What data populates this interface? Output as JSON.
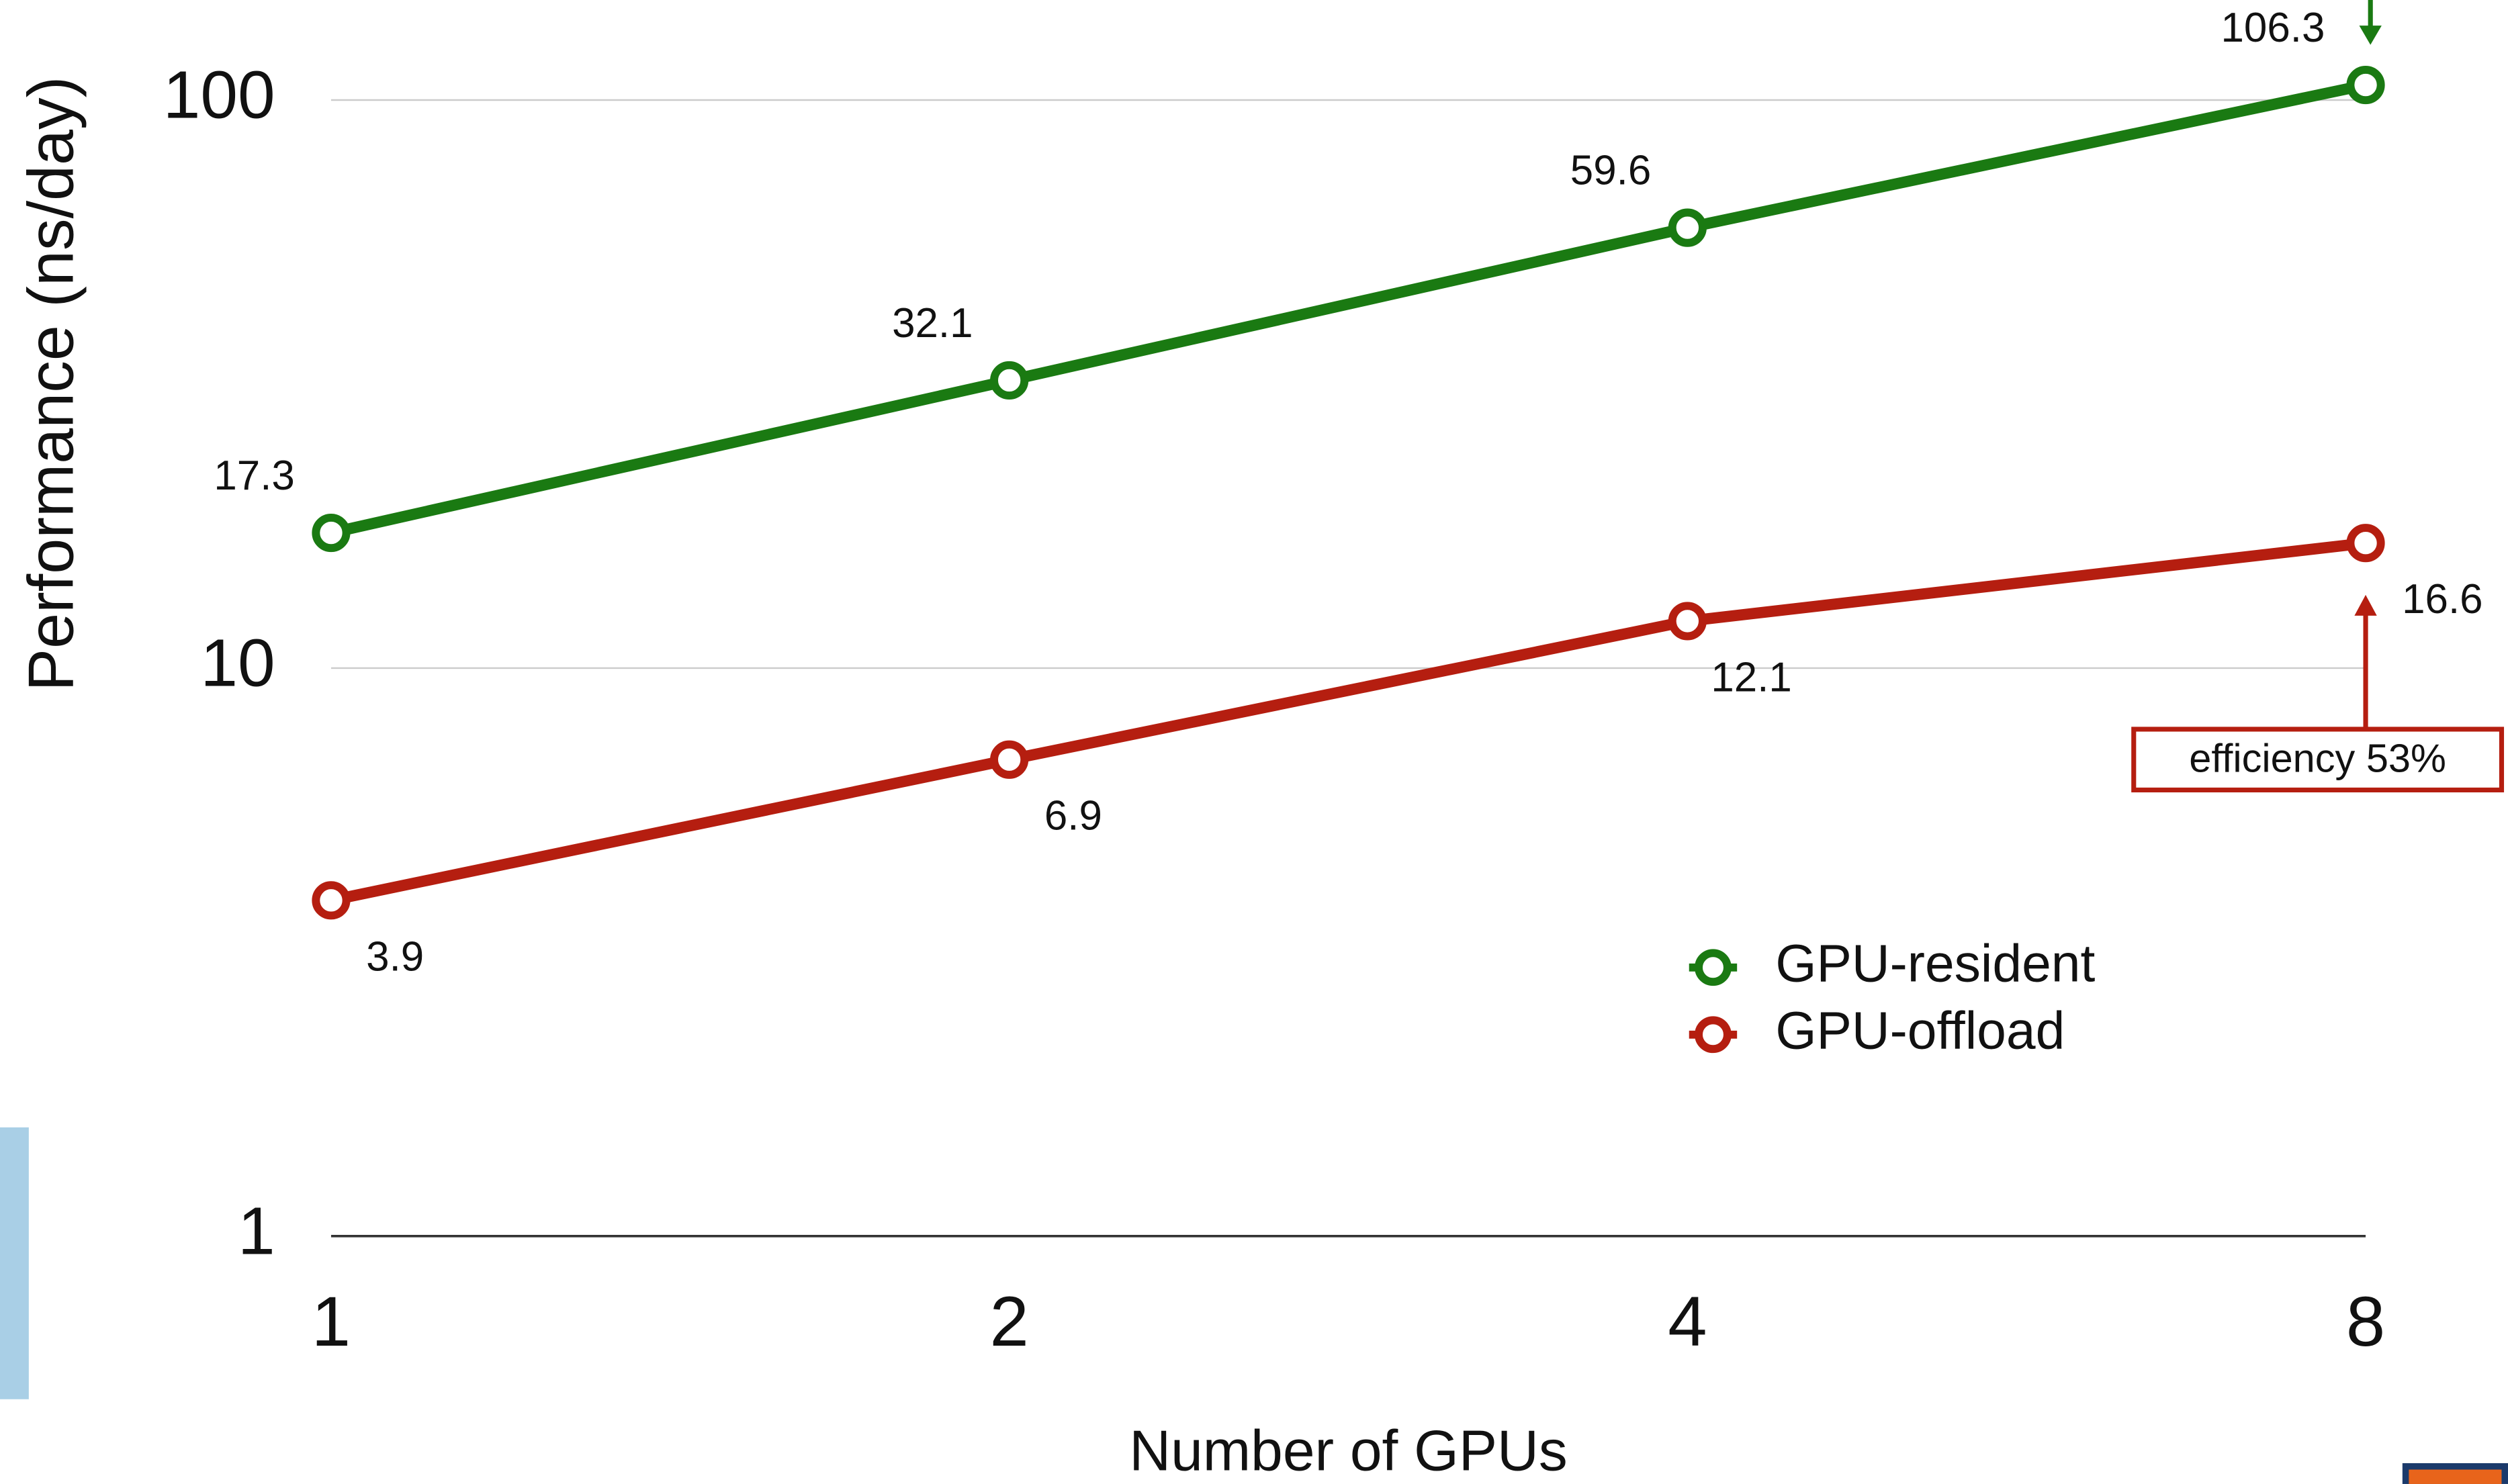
{
  "chart_data": {
    "type": "line",
    "x": [
      1,
      2,
      4,
      8
    ],
    "xlim": [
      1,
      8
    ],
    "xticks": [
      1,
      2,
      4,
      8
    ],
    "xscale": "log2",
    "ylim": [
      1,
      150
    ],
    "yticks": [
      1,
      10,
      100
    ],
    "yscale": "log",
    "grid": true,
    "xlabel": "Number of GPUs",
    "ylabel": "Performance (ns/day)",
    "legend": "lower right",
    "series": [
      {
        "name": "GPU-resident",
        "color": "#1a7a12",
        "values": [
          17.3,
          32.1,
          59.6,
          106.3
        ]
      },
      {
        "name": "GPU-offload",
        "color": "#b51e10",
        "values": [
          3.9,
          6.9,
          12.1,
          16.6
        ]
      }
    ],
    "annotations": [
      "efficiency 53%"
    ]
  }
}
